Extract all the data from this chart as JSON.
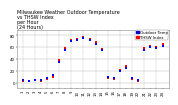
{
  "title": "Milwaukee Weather Outdoor Temperature\nvs THSW Index\nper Hour\n(24 Hours)",
  "background_color": "#ffffff",
  "plot_bg_color": "#ffffff",
  "grid_color": "#b0b0b0",
  "xlim": [
    0,
    25
  ],
  "ylim": [
    -10,
    90
  ],
  "ytick_labels": [
    "0",
    "20",
    "40",
    "60",
    "80"
  ],
  "ytick_values": [
    0,
    20,
    40,
    60,
    80
  ],
  "xtick_values": [
    1,
    2,
    3,
    4,
    5,
    6,
    7,
    8,
    9,
    10,
    11,
    12,
    13,
    14,
    15,
    16,
    17,
    18,
    19,
    20,
    21,
    22,
    23,
    24
  ],
  "vgrid_positions": [
    1,
    3,
    5,
    7,
    9,
    11,
    13,
    15,
    17,
    19,
    21,
    23
  ],
  "temp_hours": [
    1,
    2,
    3,
    4,
    5,
    6,
    7,
    8,
    9,
    10,
    11,
    12,
    13,
    14,
    15,
    16,
    17,
    18,
    19,
    20,
    21,
    22,
    23,
    24
  ],
  "temp_values": [
    5,
    3,
    5,
    4,
    8,
    12,
    35,
    55,
    70,
    72,
    75,
    72,
    65,
    55,
    10,
    8,
    20,
    25,
    8,
    5,
    55,
    60,
    58,
    62
  ],
  "thsw_hours": [
    1,
    2,
    3,
    4,
    5,
    6,
    7,
    8,
    9,
    10,
    11,
    12,
    13,
    14,
    15,
    16,
    17,
    18,
    19,
    20,
    21,
    22,
    23,
    24
  ],
  "thsw_values": [
    3,
    2,
    4,
    3,
    6,
    10,
    38,
    58,
    72,
    74,
    78,
    74,
    68,
    57,
    8,
    6,
    22,
    28,
    6,
    3,
    58,
    62,
    60,
    65
  ],
  "temp_color": "#0000ff",
  "thsw_color": "#ff0000",
  "legend_temp_label": "Outdoor Temp",
  "legend_thsw_label": "THSW Index",
  "legend_temp_color": "#0000cc",
  "legend_thsw_color": "#ff0000",
  "title_fontsize": 3.5,
  "tick_fontsize": 2.8,
  "legend_fontsize": 2.8,
  "dot_size": 1.5,
  "marker_size": 1.5
}
